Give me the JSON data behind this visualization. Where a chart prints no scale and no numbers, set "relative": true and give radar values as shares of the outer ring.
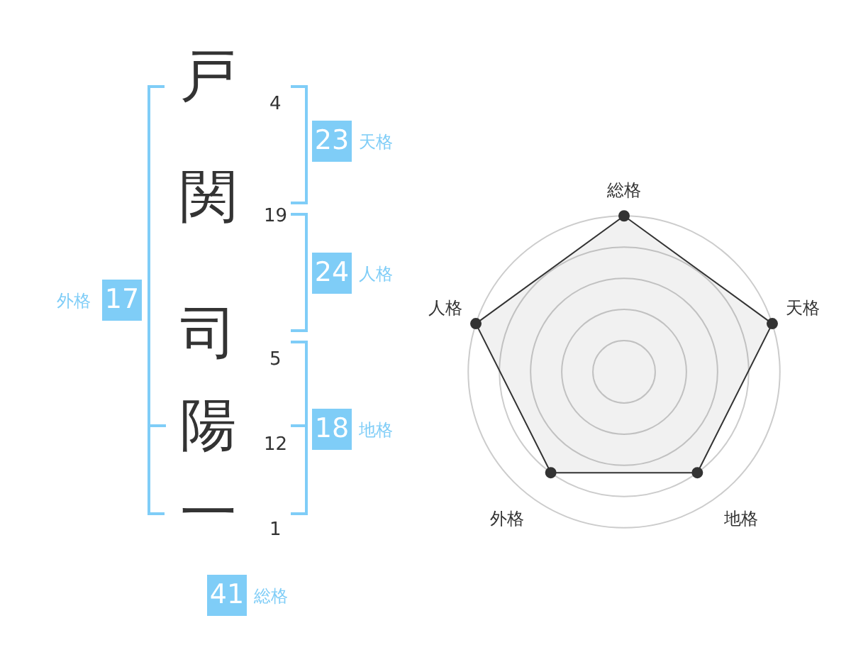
{
  "chart_data": [
    {
      "type": "other",
      "categories": [
        "戸",
        "関",
        "司",
        "陽",
        "一"
      ],
      "values": [
        4,
        19,
        5,
        12,
        1
      ],
      "data_labels": true,
      "color": "#7fcdf7",
      "annotations": [
        "23",
        "天格",
        "24",
        "人格",
        "18",
        "地格",
        "17",
        "外格",
        "41",
        "総格"
      ]
    },
    {
      "type": "radar",
      "categories": [
        "総格",
        "天格",
        "地格",
        "外格",
        "人格"
      ],
      "relative": true,
      "marker": "circle",
      "legend": false,
      "series": [
        {
          "color": "#333333",
          "values": [
            1,
            1,
            0.8,
            0.8,
            1
          ]
        }
      ]
    }
  ]
}
